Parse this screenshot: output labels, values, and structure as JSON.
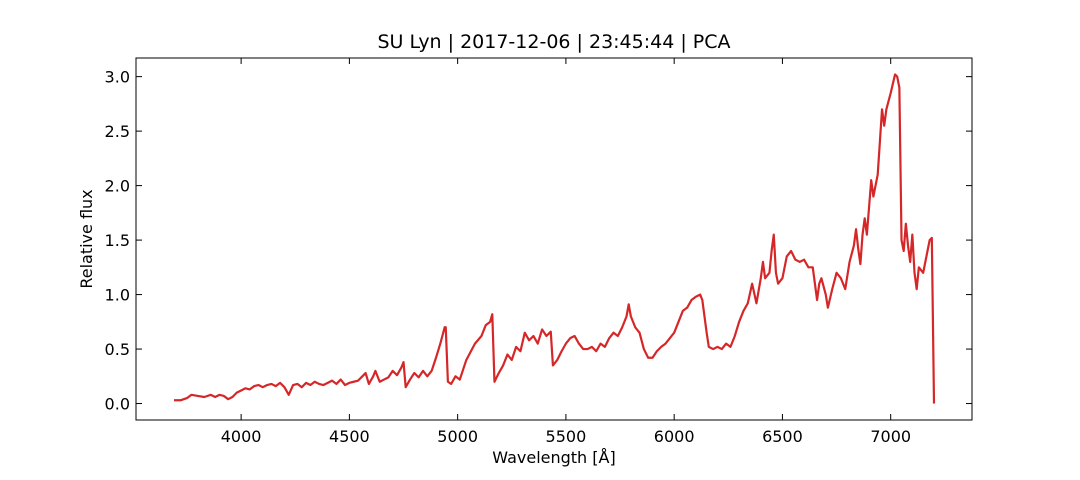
{
  "chart_data": {
    "type": "line",
    "title": "SU Lyn | 2017-12-06 | 23:45:44 | PCA",
    "xlabel": "Wavelength [Å]",
    "ylabel": "Relative flux",
    "color": "#d62728",
    "xlim": [
      3514.5,
      7375.5
    ],
    "ylim": [
      -0.151,
      3.171
    ],
    "xticks": [
      4000,
      4500,
      5000,
      5500,
      6000,
      6500,
      7000
    ],
    "yticks": [
      {
        "value": 0,
        "label": "0.0"
      },
      0.5,
      {
        "value": 1,
        "label": "1.0"
      },
      1.5,
      {
        "value": 2,
        "label": "2.0"
      },
      2.5,
      {
        "value": 3,
        "label": "3.0"
      }
    ],
    "x": [
      3690,
      3720,
      3750,
      3770,
      3800,
      3830,
      3860,
      3880,
      3900,
      3920,
      3940,
      3960,
      3980,
      4000,
      4020,
      4040,
      4060,
      4080,
      4100,
      4120,
      4140,
      4160,
      4180,
      4200,
      4220,
      4240,
      4260,
      4280,
      4300,
      4320,
      4340,
      4360,
      4380,
      4400,
      4420,
      4440,
      4460,
      4480,
      4500,
      4520,
      4540,
      4560,
      4575,
      4590,
      4610,
      4620,
      4640,
      4660,
      4680,
      4700,
      4720,
      4740,
      4750,
      4760,
      4780,
      4800,
      4820,
      4840,
      4860,
      4880,
      4900,
      4920,
      4940,
      4945,
      4955,
      4970,
      4990,
      5010,
      5040,
      5080,
      5110,
      5130,
      5150,
      5160,
      5170,
      5190,
      5210,
      5230,
      5250,
      5270,
      5290,
      5310,
      5330,
      5350,
      5370,
      5390,
      5410,
      5430,
      5440,
      5460,
      5480,
      5500,
      5520,
      5540,
      5560,
      5580,
      5600,
      5620,
      5640,
      5660,
      5680,
      5700,
      5720,
      5740,
      5760,
      5780,
      5790,
      5800,
      5820,
      5840,
      5860,
      5880,
      5900,
      5920,
      5940,
      5960,
      5980,
      6000,
      6020,
      6040,
      6060,
      6080,
      6100,
      6120,
      6130,
      6150,
      6160,
      6180,
      6200,
      6220,
      6240,
      6260,
      6280,
      6300,
      6320,
      6340,
      6360,
      6380,
      6400,
      6410,
      6420,
      6440,
      6450,
      6460,
      6470,
      6480,
      6500,
      6520,
      6540,
      6560,
      6580,
      6600,
      6620,
      6640,
      6660,
      6670,
      6680,
      6700,
      6710,
      6730,
      6750,
      6770,
      6790,
      6810,
      6830,
      6840,
      6850,
      6860,
      6870,
      6880,
      6890,
      6900,
      6910,
      6920,
      6940,
      6960,
      6970,
      6980,
      7000,
      7020,
      7030,
      7040,
      7050,
      7060,
      7070,
      7080,
      7090,
      7100,
      7110,
      7120,
      7130,
      7150,
      7170,
      7180,
      7190,
      7200
    ],
    "values": [
      0.03,
      0.03,
      0.05,
      0.08,
      0.07,
      0.06,
      0.08,
      0.06,
      0.08,
      0.07,
      0.04,
      0.06,
      0.1,
      0.12,
      0.14,
      0.13,
      0.16,
      0.17,
      0.15,
      0.17,
      0.18,
      0.16,
      0.19,
      0.15,
      0.08,
      0.17,
      0.18,
      0.15,
      0.19,
      0.17,
      0.2,
      0.18,
      0.17,
      0.19,
      0.21,
      0.18,
      0.22,
      0.17,
      0.19,
      0.2,
      0.21,
      0.25,
      0.28,
      0.18,
      0.25,
      0.3,
      0.2,
      0.22,
      0.24,
      0.3,
      0.26,
      0.33,
      0.38,
      0.15,
      0.22,
      0.28,
      0.24,
      0.3,
      0.25,
      0.3,
      0.42,
      0.55,
      0.7,
      0.7,
      0.2,
      0.18,
      0.25,
      0.22,
      0.4,
      0.55,
      0.62,
      0.72,
      0.75,
      0.82,
      0.2,
      0.28,
      0.35,
      0.45,
      0.4,
      0.52,
      0.48,
      0.65,
      0.58,
      0.62,
      0.55,
      0.68,
      0.62,
      0.66,
      0.35,
      0.4,
      0.48,
      0.55,
      0.6,
      0.62,
      0.55,
      0.5,
      0.5,
      0.52,
      0.48,
      0.55,
      0.52,
      0.6,
      0.65,
      0.62,
      0.7,
      0.8,
      0.91,
      0.8,
      0.7,
      0.65,
      0.5,
      0.42,
      0.42,
      0.48,
      0.52,
      0.55,
      0.6,
      0.65,
      0.75,
      0.85,
      0.88,
      0.95,
      0.98,
      1.0,
      0.95,
      0.65,
      0.52,
      0.5,
      0.52,
      0.5,
      0.55,
      0.52,
      0.62,
      0.75,
      0.85,
      0.92,
      1.1,
      0.92,
      1.15,
      1.3,
      1.15,
      1.2,
      1.4,
      1.55,
      1.2,
      1.1,
      1.15,
      1.35,
      1.4,
      1.32,
      1.3,
      1.32,
      1.25,
      1.25,
      0.95,
      1.1,
      1.15,
      1.0,
      0.88,
      1.05,
      1.2,
      1.15,
      1.05,
      1.3,
      1.45,
      1.6,
      1.42,
      1.28,
      1.55,
      1.7,
      1.55,
      1.8,
      2.05,
      1.9,
      2.1,
      2.7,
      2.55,
      2.7,
      2.85,
      3.02,
      3.0,
      2.9,
      1.5,
      1.4,
      1.65,
      1.45,
      1.3,
      1.55,
      1.2,
      1.05,
      1.25,
      1.2,
      1.4,
      1.5,
      1.52,
      0.0
    ]
  }
}
